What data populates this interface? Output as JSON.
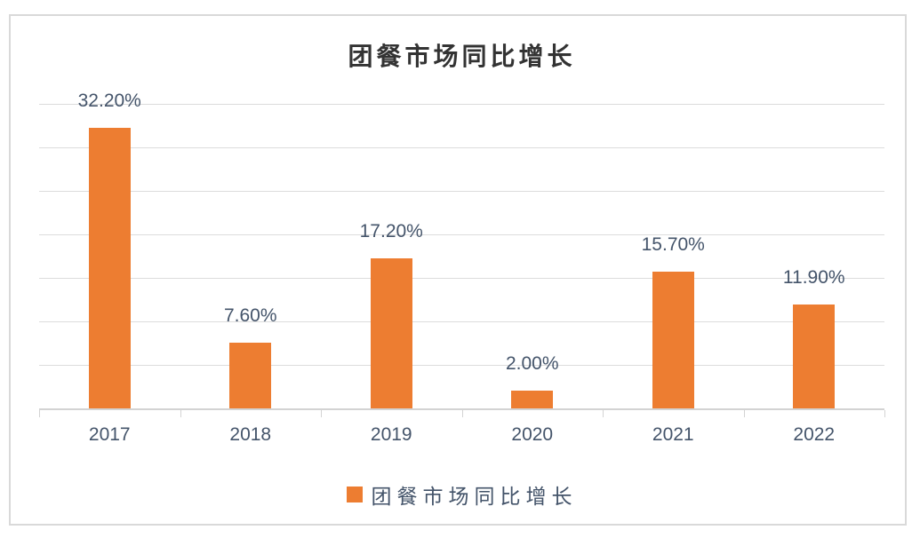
{
  "chart_data": {
    "type": "bar",
    "title": "团餐市场同比增长",
    "categories": [
      "2017",
      "2018",
      "2019",
      "2020",
      "2021",
      "2022"
    ],
    "values": [
      32.2,
      7.6,
      17.2,
      2.0,
      15.7,
      11.9
    ],
    "data_labels": [
      "32.20%",
      "7.60%",
      "17.20%",
      "2.00%",
      "15.70%",
      "11.90%"
    ],
    "xlabel": "",
    "ylabel": "",
    "ylim": [
      0,
      35
    ],
    "gridline_step": 5,
    "grid": true,
    "y_axis_tick_labels_visible": false,
    "legend": {
      "position": "bottom",
      "label": "团餐市场同比增长"
    },
    "colors": {
      "bar": "#ED7D31",
      "label_text": "#44546A",
      "title_text": "#333333",
      "gridline": "#DCDCDC",
      "axis_line": "#D3D3D3",
      "frame_border": "#D9D9D9",
      "background": "#FFFFFF"
    }
  }
}
